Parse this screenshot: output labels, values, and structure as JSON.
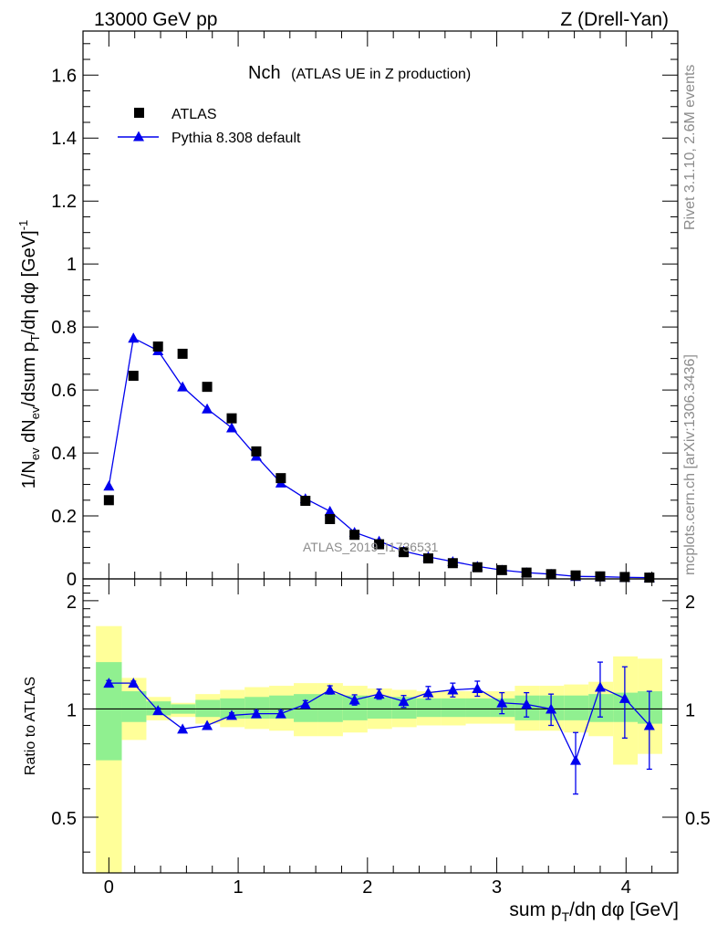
{
  "header": {
    "left": "13000 GeV pp",
    "right": "Z (Drell-Yan)"
  },
  "side_labels": {
    "rivet": "Rivet 3.1.10,  2.6M events",
    "mcplots": "mcplots.cern.ch [arXiv:1306.3436]"
  },
  "watermark": "ATLAS_2019_I1736531",
  "colors": {
    "data": "#000000",
    "mc": "#0000ee",
    "band_inner": "#90f090",
    "band_outer": "#ffff99",
    "axis": "#000000",
    "side_text": "#8c8c8c"
  },
  "chart_data": [
    {
      "type": "scatter",
      "panel": "main",
      "title": "Nch",
      "subtitle": "(ATLAS UE in Z production)",
      "xlabel": "sum p_T/dη dφ [GeV]",
      "ylabel": "1/N_ev dN_ev/dsum p_T/dη dφ [GeV]^-1",
      "xlim": [
        -0.2,
        4.4
      ],
      "ylim": [
        0,
        1.74
      ],
      "x_ticks": [
        "0",
        "1",
        "2",
        "3",
        "4"
      ],
      "y_ticks": [
        "0",
        "0.2",
        "0.4",
        "0.6",
        "0.8",
        "1",
        "1.2",
        "1.4",
        "1.6"
      ],
      "legend_position": "top-left",
      "x": [
        0,
        0.19,
        0.38,
        0.57,
        0.76,
        0.95,
        1.14,
        1.33,
        1.52,
        1.71,
        1.9,
        2.09,
        2.28,
        2.47,
        2.66,
        2.85,
        3.04,
        3.23,
        3.42,
        3.61,
        3.8,
        3.99,
        4.18
      ],
      "series": [
        {
          "name": "ATLAS",
          "marker": "square",
          "values": [
            0.25,
            0.645,
            0.738,
            0.715,
            0.61,
            0.51,
            0.405,
            0.32,
            0.248,
            0.19,
            0.14,
            0.11,
            0.085,
            0.065,
            0.05,
            0.037,
            0.028,
            0.02,
            0.015,
            0.011,
            0.008,
            0.006,
            0.004
          ]
        },
        {
          "name": "Pythia 8.308 default",
          "marker": "triangle",
          "values": [
            0.295,
            0.765,
            0.725,
            0.61,
            0.54,
            0.48,
            0.39,
            0.305,
            0.255,
            0.215,
            0.148,
            0.12,
            0.088,
            0.07,
            0.055,
            0.04,
            0.028,
            0.02,
            0.015,
            0.008,
            0.007,
            0.005,
            0.004
          ],
          "errors": [
            0.005,
            0.015,
            0.012,
            0.01,
            0.01,
            0.008,
            0.007,
            0.006,
            0.005,
            0.005,
            0.004,
            0.003,
            0.003,
            0.002,
            0.002,
            0.002,
            0.001,
            0.001,
            0.001,
            0.001,
            0.001,
            0.001,
            0.001
          ]
        }
      ]
    },
    {
      "type": "line",
      "panel": "ratio",
      "ylabel": "Ratio to ATLAS",
      "xlabel": "sum p_T/dη dφ [GeV]",
      "xlim": [
        -0.2,
        4.4
      ],
      "ylim": [
        0.35,
        2.3
      ],
      "y_ticks": [
        "0.5",
        "1",
        "2"
      ],
      "x_ticks": [
        "0",
        "1",
        "2",
        "3",
        "4"
      ],
      "bin_edges": [
        -0.1,
        0.1,
        0.29,
        0.48,
        0.67,
        0.86,
        1.05,
        1.24,
        1.43,
        1.62,
        1.81,
        2.0,
        2.19,
        2.38,
        2.57,
        2.76,
        2.95,
        3.14,
        3.33,
        3.52,
        3.71,
        3.9,
        4.09,
        4.28
      ],
      "band_inner": {
        "low": [
          0.72,
          0.92,
          0.96,
          0.97,
          0.95,
          0.94,
          0.94,
          0.94,
          0.92,
          0.92,
          0.93,
          0.94,
          0.94,
          0.95,
          0.95,
          0.95,
          0.95,
          0.93,
          0.93,
          0.93,
          0.92,
          0.92,
          0.91
        ],
        "high": [
          1.35,
          1.12,
          1.05,
          1.03,
          1.06,
          1.07,
          1.08,
          1.09,
          1.1,
          1.1,
          1.09,
          1.08,
          1.08,
          1.07,
          1.07,
          1.07,
          1.07,
          1.09,
          1.09,
          1.09,
          1.1,
          1.11,
          1.12
        ]
      },
      "band_outer": {
        "low": [
          0.3,
          0.82,
          0.93,
          0.95,
          0.91,
          0.89,
          0.88,
          0.87,
          0.84,
          0.84,
          0.86,
          0.88,
          0.89,
          0.9,
          0.9,
          0.91,
          0.91,
          0.87,
          0.87,
          0.86,
          0.84,
          0.7,
          0.75
        ],
        "high": [
          1.7,
          1.22,
          1.08,
          1.04,
          1.1,
          1.13,
          1.15,
          1.16,
          1.18,
          1.18,
          1.16,
          1.14,
          1.13,
          1.12,
          1.12,
          1.12,
          1.12,
          1.16,
          1.16,
          1.17,
          1.19,
          1.4,
          1.38
        ]
      },
      "series": [
        {
          "name": "Pythia 8.308 default",
          "x": [
            0,
            0.19,
            0.38,
            0.57,
            0.76,
            0.95,
            1.14,
            1.33,
            1.52,
            1.71,
            1.9,
            2.09,
            2.28,
            2.47,
            2.66,
            2.85,
            3.04,
            3.23,
            3.42,
            3.61,
            3.8,
            3.99,
            4.18
          ],
          "values": [
            1.18,
            1.18,
            0.99,
            0.88,
            0.9,
            0.96,
            0.97,
            0.97,
            1.03,
            1.13,
            1.06,
            1.1,
            1.05,
            1.11,
            1.13,
            1.14,
            1.04,
            1.03,
            1.0,
            0.72,
            1.15,
            1.07,
            0.9
          ],
          "errors": [
            0.02,
            0.015,
            0.015,
            0.01,
            0.012,
            0.015,
            0.02,
            0.02,
            0.025,
            0.03,
            0.035,
            0.035,
            0.04,
            0.045,
            0.05,
            0.055,
            0.07,
            0.08,
            0.1,
            0.14,
            0.2,
            0.24,
            0.22
          ]
        }
      ]
    }
  ]
}
